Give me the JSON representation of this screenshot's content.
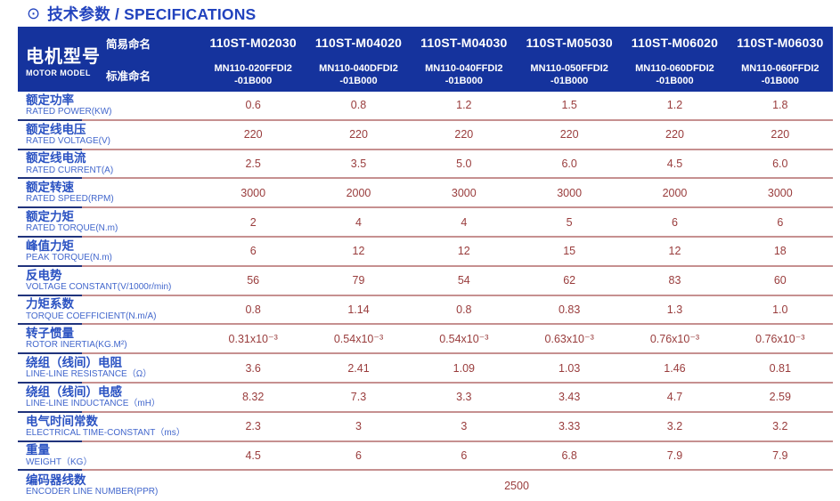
{
  "page": {
    "title_icon": "⊙",
    "title": "技术参数 / SPECIFICATIONS"
  },
  "table": {
    "header": {
      "row_label_zh": "电机型号",
      "row_label_en": "MOTOR MODEL",
      "simple_name_label": "简易命名",
      "standard_name_label": "标准命名",
      "columns": [
        {
          "simple": "110ST-M02030",
          "standard_line1": "MN110-020FFDI2",
          "standard_line2": "-01B000"
        },
        {
          "simple": "110ST-M04020",
          "standard_line1": "MN110-040DFDI2",
          "standard_line2": "-01B000"
        },
        {
          "simple": "110ST-M04030",
          "standard_line1": "MN110-040FFDI2",
          "standard_line2": "-01B000"
        },
        {
          "simple": "110ST-M05030",
          "standard_line1": "MN110-050FFDI2",
          "standard_line2": "-01B000"
        },
        {
          "simple": "110ST-M06020",
          "standard_line1": "MN110-060DFDI2",
          "standard_line2": "-01B000"
        },
        {
          "simple": "110ST-M06030",
          "standard_line1": "MN110-060FFDI2",
          "standard_line2": "-01B000"
        }
      ]
    },
    "rows": [
      {
        "zh": "额定功率",
        "en": "RATED POWER(KW)",
        "values": [
          "0.6",
          "0.8",
          "1.2",
          "1.5",
          "1.2",
          "1.8"
        ]
      },
      {
        "zh": "额定线电压",
        "en": "RATED VOLTAGE(V)",
        "values": [
          "220",
          "220",
          "220",
          "220",
          "220",
          "220"
        ]
      },
      {
        "zh": "额定线电流",
        "en": "RATED CURRENT(A)",
        "values": [
          "2.5",
          "3.5",
          "5.0",
          "6.0",
          "4.5",
          "6.0"
        ]
      },
      {
        "zh": "额定转速",
        "en": "RATED SPEED(RPM)",
        "values": [
          "3000",
          "2000",
          "3000",
          "3000",
          "2000",
          "3000"
        ]
      },
      {
        "zh": "额定力矩",
        "en": "RATED TORQUE(N.m)",
        "values": [
          "2",
          "4",
          "4",
          "5",
          "6",
          "6"
        ]
      },
      {
        "zh": "峰值力矩",
        "en": "PEAK TORQUE(N.m)",
        "values": [
          "6",
          "12",
          "12",
          "15",
          "12",
          "18"
        ]
      },
      {
        "zh": "反电势",
        "en": "VOLTAGE CONSTANT(V/1000r/min)",
        "values": [
          "56",
          "79",
          "54",
          "62",
          "83",
          "60"
        ]
      },
      {
        "zh": "力矩系数",
        "en": "TORQUE COEFFICIENT(N.m/A)",
        "values": [
          "0.8",
          "1.14",
          "0.8",
          "0.83",
          "1.3",
          "1.0"
        ]
      },
      {
        "zh": "转子惯量",
        "en": "ROTOR INERTIA(KG.M²)",
        "values": [
          "0.31x10⁻³",
          "0.54x10⁻³",
          "0.54x10⁻³",
          "0.63x10⁻³",
          "0.76x10⁻³",
          "0.76x10⁻³"
        ]
      },
      {
        "zh": "绕组（线间）电阻",
        "en": "LINE-LINE RESISTANCE（Ω）",
        "values": [
          "3.6",
          "2.41",
          "1.09",
          "1.03",
          "1.46",
          "0.81"
        ]
      },
      {
        "zh": "绕组（线间）电感",
        "en": "LINE-LINE INDUCTANCE（mH）",
        "values": [
          "8.32",
          "7.3",
          "3.3",
          "3.43",
          "4.7",
          "2.59"
        ]
      },
      {
        "zh": "电气时间常数",
        "en": "ELECTRICAL TIME-CONSTANT（ms）",
        "values": [
          "2.3",
          "3",
          "3",
          "3.33",
          "3.2",
          "3.2"
        ]
      },
      {
        "zh": "重量",
        "en": "WEIGHT（KG）",
        "values": [
          "4.5",
          "6",
          "6",
          "6.8",
          "7.9",
          "7.9"
        ]
      },
      {
        "zh": "编码器线数",
        "en": "ENCODER LINE NUMBER(PPR)",
        "span_value": "2500"
      }
    ]
  },
  "colors": {
    "header_bg": "#15339d",
    "title_text": "#2243be",
    "label_zh": "#2a52c2",
    "label_en": "#4166cc",
    "value_text": "#993c3c",
    "separator_pink": "#c69090",
    "separator_navy": "#20337c"
  }
}
